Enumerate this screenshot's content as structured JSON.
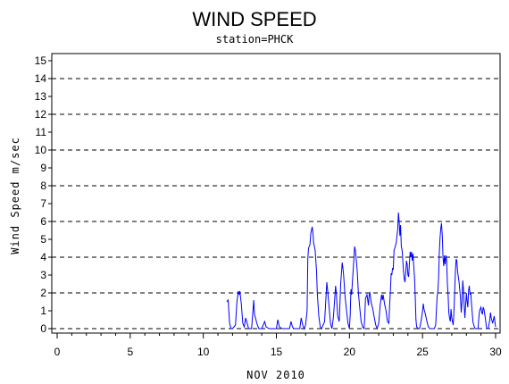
{
  "chart_data": {
    "type": "line",
    "title": "WIND SPEED",
    "subtitle": "station=PHCK",
    "xlabel": "NOV 2010",
    "ylabel": "Wind Speed m/sec",
    "xlim": [
      0,
      30
    ],
    "ylim": [
      0,
      15
    ],
    "x_ticks": [
      0,
      5,
      10,
      15,
      20,
      25,
      30
    ],
    "y_ticks": [
      0,
      1,
      2,
      3,
      4,
      5,
      6,
      7,
      8,
      9,
      10,
      11,
      12,
      13,
      14,
      15
    ],
    "gridlines_y": [
      2,
      4,
      6,
      8,
      10,
      12,
      14
    ],
    "grid": "dashed horizontal at even values",
    "line_color": "#0000ff",
    "series": [
      {
        "values": [
          [
            11.6,
            1.5
          ],
          [
            11.7,
            1.6
          ],
          [
            11.8,
            0.3
          ],
          [
            11.9,
            0.0
          ],
          [
            12.0,
            0.0
          ],
          [
            12.2,
            0.2
          ],
          [
            12.3,
            1.5
          ],
          [
            12.4,
            2.1
          ],
          [
            12.45,
            1.9
          ],
          [
            12.5,
            2.1
          ],
          [
            12.6,
            1.4
          ],
          [
            12.7,
            0.3
          ],
          [
            12.8,
            0.1
          ],
          [
            12.9,
            0.6
          ],
          [
            13.0,
            0.3
          ],
          [
            13.1,
            0.0
          ],
          [
            13.3,
            0.0
          ],
          [
            13.4,
            1.0
          ],
          [
            13.45,
            1.6
          ],
          [
            13.5,
            0.8
          ],
          [
            13.6,
            0.5
          ],
          [
            13.7,
            0.2
          ],
          [
            13.8,
            0.0
          ],
          [
            14.0,
            0.0
          ],
          [
            14.2,
            0.4
          ],
          [
            14.3,
            0.1
          ],
          [
            14.5,
            0.0
          ],
          [
            15.0,
            0.0
          ],
          [
            15.1,
            0.5
          ],
          [
            15.2,
            0.1
          ],
          [
            15.4,
            0.0
          ],
          [
            15.9,
            0.0
          ],
          [
            16.0,
            0.4
          ],
          [
            16.1,
            0.1
          ],
          [
            16.2,
            0.0
          ],
          [
            16.6,
            0.0
          ],
          [
            16.7,
            0.6
          ],
          [
            16.8,
            0.2
          ],
          [
            16.9,
            0.0
          ],
          [
            17.0,
            0.2
          ],
          [
            17.1,
            1.0
          ],
          [
            17.15,
            3.9
          ],
          [
            17.2,
            4.5
          ],
          [
            17.3,
            4.7
          ],
          [
            17.35,
            5.3
          ],
          [
            17.45,
            5.7
          ],
          [
            17.5,
            5.4
          ],
          [
            17.55,
            4.8
          ],
          [
            17.65,
            4.4
          ],
          [
            17.75,
            3.2
          ],
          [
            17.8,
            2.0
          ],
          [
            17.9,
            0.7
          ],
          [
            18.0,
            0.1
          ],
          [
            18.1,
            0.0
          ],
          [
            18.3,
            0.4
          ],
          [
            18.4,
            1.8
          ],
          [
            18.45,
            2.6
          ],
          [
            18.5,
            2.2
          ],
          [
            18.6,
            1.3
          ],
          [
            18.7,
            0.3
          ],
          [
            18.8,
            0.0
          ],
          [
            18.9,
            0.6
          ],
          [
            19.0,
            1.8
          ],
          [
            19.05,
            2.4
          ],
          [
            19.1,
            2.0
          ],
          [
            19.2,
            0.7
          ],
          [
            19.3,
            0.4
          ],
          [
            19.4,
            2.5
          ],
          [
            19.5,
            3.7
          ],
          [
            19.55,
            3.4
          ],
          [
            19.6,
            3.0
          ],
          [
            19.7,
            1.8
          ],
          [
            19.8,
            1.0
          ],
          [
            19.9,
            0.3
          ],
          [
            20.0,
            0.0
          ],
          [
            20.05,
            0.8
          ],
          [
            20.1,
            2.2
          ],
          [
            20.15,
            1.9
          ],
          [
            20.2,
            2.6
          ],
          [
            20.3,
            3.8
          ],
          [
            20.35,
            4.6
          ],
          [
            20.4,
            4.4
          ],
          [
            20.5,
            3.6
          ],
          [
            20.55,
            3.0
          ],
          [
            20.6,
            2.1
          ],
          [
            20.7,
            1.2
          ],
          [
            20.8,
            0.4
          ],
          [
            20.9,
            0.1
          ],
          [
            21.0,
            0.0
          ],
          [
            21.05,
            0.7
          ],
          [
            21.1,
            1.7
          ],
          [
            21.2,
            1.9
          ],
          [
            21.3,
            1.3
          ],
          [
            21.35,
            1.9
          ],
          [
            21.4,
            2.0
          ],
          [
            21.5,
            1.4
          ],
          [
            21.6,
            1.1
          ],
          [
            21.7,
            0.6
          ],
          [
            21.8,
            0.2
          ],
          [
            21.9,
            0.0
          ],
          [
            22.0,
            0.3
          ],
          [
            22.1,
            1.3
          ],
          [
            22.2,
            1.9
          ],
          [
            22.25,
            1.6
          ],
          [
            22.3,
            1.9
          ],
          [
            22.4,
            1.4
          ],
          [
            22.5,
            1.0
          ],
          [
            22.6,
            0.4
          ],
          [
            22.7,
            0.3
          ],
          [
            22.75,
            1.3
          ],
          [
            22.8,
            2.1
          ],
          [
            22.85,
            3.1
          ],
          [
            22.9,
            3.0
          ],
          [
            22.95,
            3.4
          ],
          [
            23.0,
            3.3
          ],
          [
            23.05,
            4.4
          ],
          [
            23.1,
            4.5
          ],
          [
            23.2,
            4.8
          ],
          [
            23.25,
            5.2
          ],
          [
            23.3,
            5.5
          ],
          [
            23.35,
            6.5
          ],
          [
            23.4,
            6.0
          ],
          [
            23.45,
            5.2
          ],
          [
            23.5,
            5.8
          ],
          [
            23.55,
            4.6
          ],
          [
            23.6,
            4.4
          ],
          [
            23.65,
            3.8
          ],
          [
            23.7,
            3.2
          ],
          [
            23.75,
            2.8
          ],
          [
            23.8,
            2.6
          ],
          [
            23.85,
            3.1
          ],
          [
            23.9,
            3.8
          ],
          [
            23.95,
            3.6
          ],
          [
            24.0,
            3.0
          ],
          [
            24.05,
            2.9
          ],
          [
            24.1,
            3.6
          ],
          [
            24.15,
            4.3
          ],
          [
            24.2,
            4.0
          ],
          [
            24.25,
            4.3
          ],
          [
            24.3,
            3.8
          ],
          [
            24.35,
            4.2
          ],
          [
            24.4,
            3.5
          ],
          [
            24.45,
            2.9
          ],
          [
            24.5,
            1.8
          ],
          [
            24.55,
            0.5
          ],
          [
            24.6,
            0.1
          ],
          [
            24.7,
            0.0
          ],
          [
            24.8,
            0.0
          ],
          [
            24.9,
            0.4
          ],
          [
            25.0,
            1.0
          ],
          [
            25.05,
            1.4
          ],
          [
            25.1,
            1.1
          ],
          [
            25.2,
            0.8
          ],
          [
            25.3,
            0.4
          ],
          [
            25.4,
            0.1
          ],
          [
            25.5,
            0.0
          ],
          [
            25.8,
            0.0
          ],
          [
            25.9,
            0.2
          ],
          [
            26.0,
            1.8
          ],
          [
            26.05,
            2.1
          ],
          [
            26.1,
            2.9
          ],
          [
            26.15,
            4.3
          ],
          [
            26.2,
            5.1
          ],
          [
            26.25,
            5.6
          ],
          [
            26.3,
            5.9
          ],
          [
            26.35,
            5.2
          ],
          [
            26.4,
            4.0
          ],
          [
            26.45,
            3.5
          ],
          [
            26.5,
            4.1
          ],
          [
            26.55,
            3.6
          ],
          [
            26.6,
            4.1
          ],
          [
            26.65,
            3.8
          ],
          [
            26.7,
            2.5
          ],
          [
            26.75,
            1.9
          ],
          [
            26.8,
            0.9
          ],
          [
            26.85,
            0.6
          ],
          [
            26.9,
            0.4
          ],
          [
            26.95,
            1.1
          ],
          [
            27.0,
            0.6
          ],
          [
            27.1,
            0.2
          ],
          [
            27.15,
            1.0
          ],
          [
            27.2,
            2.1
          ],
          [
            27.25,
            3.2
          ],
          [
            27.3,
            3.9
          ],
          [
            27.35,
            3.8
          ],
          [
            27.4,
            3.2
          ],
          [
            27.5,
            2.6
          ],
          [
            27.6,
            1.7
          ],
          [
            27.65,
            0.9
          ],
          [
            27.7,
            1.5
          ],
          [
            27.75,
            2.7
          ],
          [
            27.8,
            2.2
          ],
          [
            27.85,
            1.3
          ],
          [
            27.9,
            0.6
          ],
          [
            27.95,
            1.3
          ],
          [
            28.0,
            2.0
          ],
          [
            28.05,
            1.5
          ],
          [
            28.1,
            1.2
          ],
          [
            28.15,
            2.1
          ],
          [
            28.2,
            2.4
          ],
          [
            28.25,
            1.9
          ],
          [
            28.3,
            2.0
          ],
          [
            28.35,
            1.4
          ],
          [
            28.4,
            0.9
          ],
          [
            28.45,
            0.4
          ],
          [
            28.5,
            0.2
          ],
          [
            28.6,
            0.0
          ],
          [
            28.8,
            0.0
          ],
          [
            28.85,
            0.6
          ],
          [
            28.9,
            1.0
          ],
          [
            29.0,
            1.2
          ],
          [
            29.05,
            0.9
          ],
          [
            29.1,
            0.8
          ],
          [
            29.15,
            1.2
          ],
          [
            29.2,
            1.1
          ],
          [
            29.3,
            0.6
          ],
          [
            29.35,
            0.2
          ],
          [
            29.4,
            0.0
          ],
          [
            29.5,
            0.0
          ],
          [
            29.6,
            0.5
          ],
          [
            29.65,
            0.9
          ],
          [
            29.7,
            0.6
          ],
          [
            29.8,
            0.3
          ],
          [
            29.9,
            0.7
          ],
          [
            29.95,
            0.4
          ],
          [
            30.0,
            0.1
          ]
        ]
      }
    ]
  }
}
